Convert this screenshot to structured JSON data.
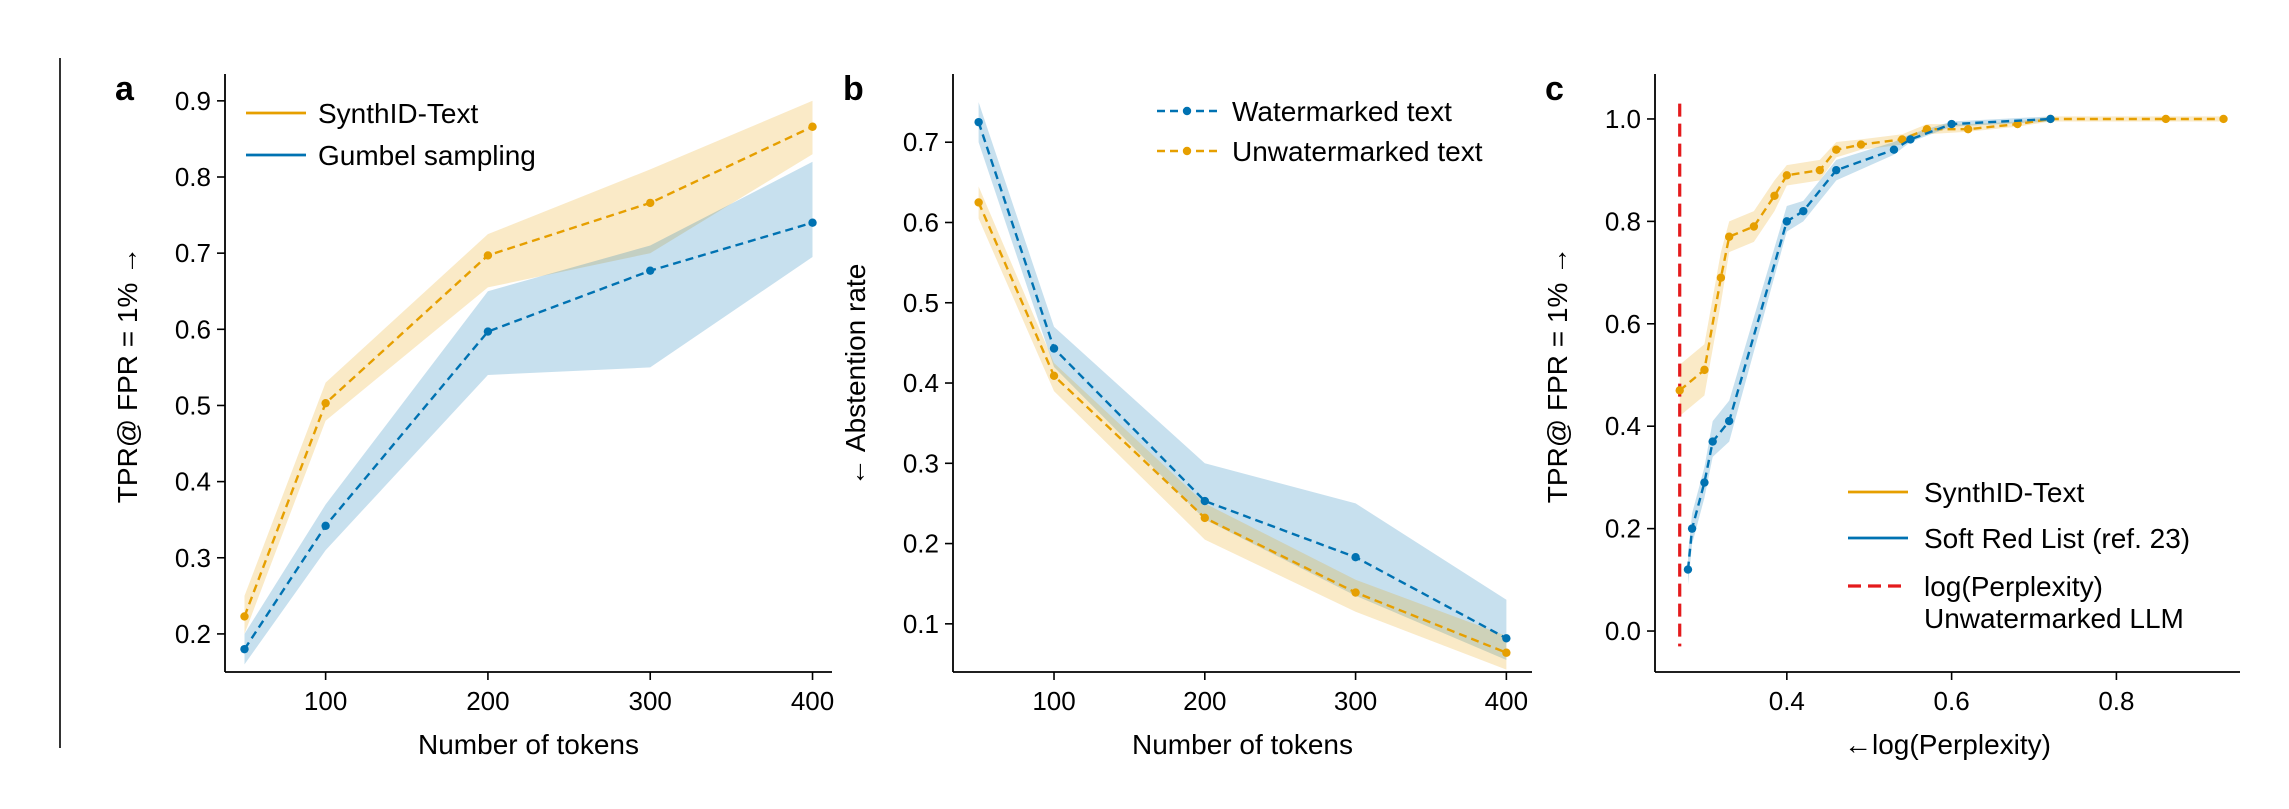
{
  "colors": {
    "synthid": "#E69F00",
    "blue": "#0072B2",
    "red": "#E41A1C",
    "axis": "#000000"
  },
  "chart_data": [
    {
      "panel": "a",
      "type": "line",
      "xlabel": "Number of tokens",
      "ylabel": "TPR@ FPR = 1% →",
      "xlim": [
        38,
        412
      ],
      "ylim": [
        0.15,
        0.93
      ],
      "xticks": [
        100,
        200,
        300,
        400
      ],
      "yticks": [
        0.2,
        0.3,
        0.4,
        0.5,
        0.6,
        0.7,
        0.8,
        0.9
      ],
      "legend_position": "top-left",
      "series": [
        {
          "name": "SynthID-Text",
          "color": "#E69F00",
          "x": [
            50,
            100,
            200,
            300,
            400
          ],
          "y": [
            0.223,
            0.503,
            0.697,
            0.766,
            0.866
          ],
          "lower": [
            0.2,
            0.48,
            0.655,
            0.7,
            0.83
          ],
          "upper": [
            0.25,
            0.53,
            0.725,
            0.81,
            0.9
          ]
        },
        {
          "name": "Gumbel sampling",
          "color": "#0072B2",
          "x": [
            50,
            100,
            200,
            300,
            400
          ],
          "y": [
            0.18,
            0.342,
            0.597,
            0.677,
            0.74
          ],
          "lower": [
            0.16,
            0.31,
            0.54,
            0.55,
            0.695
          ],
          "upper": [
            0.2,
            0.37,
            0.65,
            0.71,
            0.82
          ]
        }
      ]
    },
    {
      "panel": "b",
      "type": "line",
      "xlabel": "Number of tokens",
      "ylabel": "← Abstention rate",
      "xlim": [
        33,
        417
      ],
      "ylim": [
        0.04,
        0.78
      ],
      "xticks": [
        100,
        200,
        300,
        400
      ],
      "yticks": [
        0.1,
        0.2,
        0.3,
        0.4,
        0.5,
        0.6,
        0.7
      ],
      "legend_position": "top-right",
      "series": [
        {
          "name": "Watermarked text",
          "color": "#0072B2",
          "x": [
            50,
            100,
            200,
            300,
            400
          ],
          "y": [
            0.725,
            0.443,
            0.253,
            0.183,
            0.082
          ],
          "lower": [
            0.7,
            0.42,
            0.23,
            0.135,
            0.055
          ],
          "upper": [
            0.75,
            0.47,
            0.3,
            0.25,
            0.13
          ]
        },
        {
          "name": "Unwatermarked text",
          "color": "#E69F00",
          "x": [
            50,
            100,
            200,
            300,
            400
          ],
          "y": [
            0.625,
            0.409,
            0.232,
            0.139,
            0.064
          ],
          "lower": [
            0.605,
            0.39,
            0.205,
            0.115,
            0.043
          ],
          "upper": [
            0.645,
            0.425,
            0.25,
            0.155,
            0.085
          ]
        }
      ]
    },
    {
      "panel": "c",
      "type": "line",
      "xlabel": "←log(Perplexity)",
      "ylabel": "TPR@ FPR = 1% →",
      "xlim": [
        0.24,
        0.95
      ],
      "ylim": [
        -0.08,
        1.08
      ],
      "xticks": [
        0.4,
        0.6,
        0.8
      ],
      "yticks": [
        0.0,
        0.2,
        0.4,
        0.6,
        0.8,
        1.0
      ],
      "legend_position": "bottom-right",
      "reference_line": {
        "name": "log(Perplexity) Unwatermarked LLM",
        "x": 0.27,
        "color": "#E41A1C",
        "dashed": true
      },
      "series": [
        {
          "name": "SynthID-Text",
          "color": "#E69F00",
          "x": [
            0.27,
            0.3,
            0.32,
            0.33,
            0.36,
            0.385,
            0.4,
            0.44,
            0.46,
            0.49,
            0.54,
            0.57,
            0.62,
            0.68,
            0.72,
            0.86,
            0.93
          ],
          "y": [
            0.47,
            0.51,
            0.69,
            0.77,
            0.79,
            0.85,
            0.89,
            0.9,
            0.94,
            0.95,
            0.96,
            0.98,
            0.98,
            0.99,
            1.0,
            1.0,
            1.0
          ],
          "lower": [
            0.42,
            0.46,
            0.64,
            0.74,
            0.76,
            0.82,
            0.87,
            0.88,
            0.925,
            0.94,
            0.95,
            0.97,
            0.975,
            0.985,
            0.995,
            0.995,
            0.995
          ],
          "upper": [
            0.52,
            0.56,
            0.74,
            0.8,
            0.82,
            0.88,
            0.91,
            0.92,
            0.955,
            0.96,
            0.97,
            0.99,
            0.99,
            0.995,
            1.005,
            1.005,
            1.005
          ]
        },
        {
          "name": "Soft Red List (ref. 23)",
          "color": "#0072B2",
          "x": [
            0.28,
            0.285,
            0.3,
            0.31,
            0.33,
            0.4,
            0.42,
            0.46,
            0.53,
            0.55,
            0.6,
            0.72
          ],
          "y": [
            0.12,
            0.2,
            0.29,
            0.37,
            0.41,
            0.8,
            0.82,
            0.9,
            0.94,
            0.96,
            0.99,
            1.0
          ],
          "lower": [
            0.09,
            0.17,
            0.26,
            0.34,
            0.37,
            0.78,
            0.8,
            0.88,
            0.93,
            0.955,
            0.985,
            0.995
          ],
          "upper": [
            0.15,
            0.23,
            0.32,
            0.41,
            0.45,
            0.83,
            0.84,
            0.92,
            0.955,
            0.97,
            0.995,
            1.005
          ]
        }
      ]
    }
  ]
}
